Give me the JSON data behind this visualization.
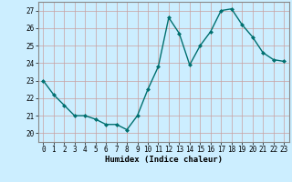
{
  "x": [
    0,
    1,
    2,
    3,
    4,
    5,
    6,
    7,
    8,
    9,
    10,
    11,
    12,
    13,
    14,
    15,
    16,
    17,
    18,
    19,
    20,
    21,
    22,
    23
  ],
  "y": [
    23,
    22.2,
    21.6,
    21.0,
    21.0,
    20.8,
    20.5,
    20.5,
    20.2,
    21.0,
    22.5,
    23.8,
    26.6,
    25.7,
    23.9,
    25.0,
    25.8,
    27.0,
    27.1,
    26.2,
    25.5,
    24.6,
    24.2,
    24.1
  ],
  "line_color": "#007070",
  "marker_color": "#007070",
  "bg_color": "#cceeff",
  "grid_major_color": "#bbbbbb",
  "grid_minor_color": "#dddddd",
  "xlabel": "Humidex (Indice chaleur)",
  "ylim": [
    19.5,
    27.5
  ],
  "xlim": [
    -0.5,
    23.5
  ],
  "yticks": [
    20,
    21,
    22,
    23,
    24,
    25,
    26,
    27
  ],
  "xticks": [
    0,
    1,
    2,
    3,
    4,
    5,
    6,
    7,
    8,
    9,
    10,
    11,
    12,
    13,
    14,
    15,
    16,
    17,
    18,
    19,
    20,
    21,
    22,
    23
  ],
  "xlabel_fontsize": 6.5,
  "tick_fontsize": 5.5,
  "linewidth": 1.0,
  "markersize": 2.0
}
